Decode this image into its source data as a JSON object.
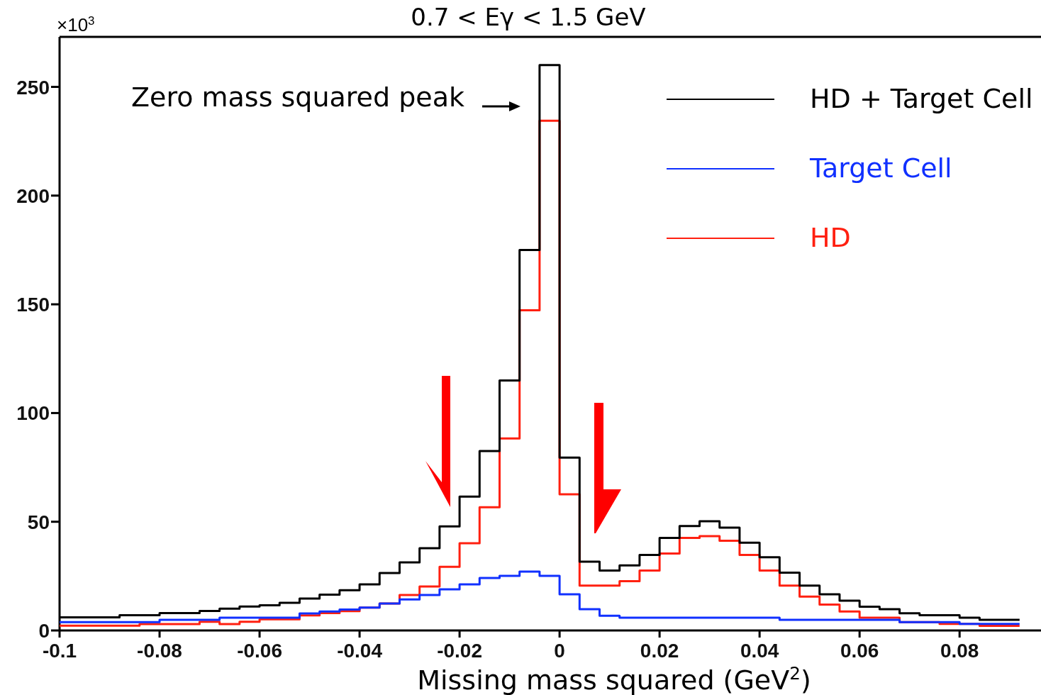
{
  "chart_data": {
    "type": "step",
    "title": "0.7 < Eγ < 1.5 GeV",
    "xlabel": "Missing mass squared (GeV$^{2}$)",
    "annotations": [
      "×10$^{3}$",
      "Zero mass squared peak"
    ],
    "x": [
      -0.1,
      -0.096,
      -0.092,
      -0.088,
      -0.084,
      -0.08,
      -0.076,
      -0.072,
      -0.068,
      -0.064,
      -0.06,
      -0.056,
      -0.052,
      -0.048,
      -0.044,
      -0.04,
      -0.036,
      -0.032,
      -0.028,
      -0.024,
      -0.02,
      -0.016,
      -0.012,
      -0.008,
      -0.004,
      0,
      0.004,
      0.008,
      0.012,
      0.016,
      0.02,
      0.024,
      0.028,
      0.032,
      0.036,
      0.04,
      0.044,
      0.048,
      0.052,
      0.056,
      0.06,
      0.064,
      0.068,
      0.072,
      0.076,
      0.08,
      0.084,
      0.088,
      0.092
    ],
    "series": [
      {
        "name": "HD + Target Cell",
        "color": "#000000",
        "values": [
          6,
          6,
          6,
          7,
          7,
          8,
          8,
          9,
          10,
          11,
          11.6,
          12.7,
          14.7,
          16.5,
          18.5,
          21.2,
          26.4,
          31.3,
          37.8,
          47.9,
          61.6,
          82.5,
          115,
          175,
          260,
          79.5,
          31.6,
          27.6,
          29.9,
          34.7,
          42.6,
          48,
          50.2,
          47.3,
          40.4,
          33.7,
          26.6,
          20.6,
          16.6,
          13.7,
          10.9,
          9.8,
          7.9,
          7,
          7,
          5.9,
          4.9,
          4.9,
          4.9
        ]
      },
      {
        "name": "Target Cell",
        "color": "#1030ff",
        "values": [
          3.8,
          3.8,
          3.8,
          3.8,
          3.8,
          4.9,
          4.9,
          4.9,
          5.9,
          5.9,
          5.9,
          5.9,
          7.8,
          8.7,
          9.6,
          10.5,
          12.4,
          14.3,
          16.3,
          18.9,
          21.2,
          24.1,
          25.1,
          27.1,
          25.1,
          16.6,
          9.8,
          6.8,
          5.9,
          5.9,
          5.9,
          5.9,
          5.9,
          5.9,
          5.9,
          5.9,
          4.9,
          4.9,
          4.9,
          4.9,
          4.9,
          4.9,
          3.8,
          3.8,
          3.8,
          3,
          3,
          3,
          3
        ]
      },
      {
        "name": "HD",
        "color": "#ff2010",
        "values": [
          2.2,
          2.2,
          2.2,
          2.2,
          2.9,
          2.9,
          2.9,
          4,
          2.9,
          4,
          5.1,
          5.1,
          6.9,
          8,
          8.9,
          10.5,
          12.4,
          16.3,
          20.2,
          29.3,
          40.1,
          56.7,
          88.3,
          147.3,
          234.4,
          62.6,
          20.6,
          20.6,
          22.7,
          27.6,
          35.4,
          42.6,
          43.4,
          41.3,
          34.7,
          27.6,
          20.6,
          15.6,
          11.9,
          8.7,
          5.9,
          5.9,
          3.8,
          3.8,
          3,
          3,
          2.1,
          2.1,
          2.1
        ]
      }
    ],
    "xlim": [
      -0.1,
      0.096
    ],
    "xticks": [
      {
        "value": -0.1,
        "label": "-0.1"
      },
      {
        "value": -0.08,
        "label": "-0.08"
      },
      {
        "value": -0.06,
        "label": "-0.06"
      },
      {
        "value": -0.04,
        "label": "-0.04"
      },
      {
        "value": -0.02,
        "label": "-0.02"
      },
      0,
      {
        "value": 0.02,
        "label": "0.02"
      },
      {
        "value": 0.04,
        "label": "0.04"
      },
      {
        "value": 0.06,
        "label": "0.06"
      },
      {
        "value": 0.08,
        "label": "0.08"
      }
    ],
    "ylim": [
      0,
      273
    ],
    "yticks": [
      0,
      50,
      100,
      150,
      200,
      250
    ],
    "legend": "top right",
    "marker": "none",
    "line_style": "solid"
  }
}
